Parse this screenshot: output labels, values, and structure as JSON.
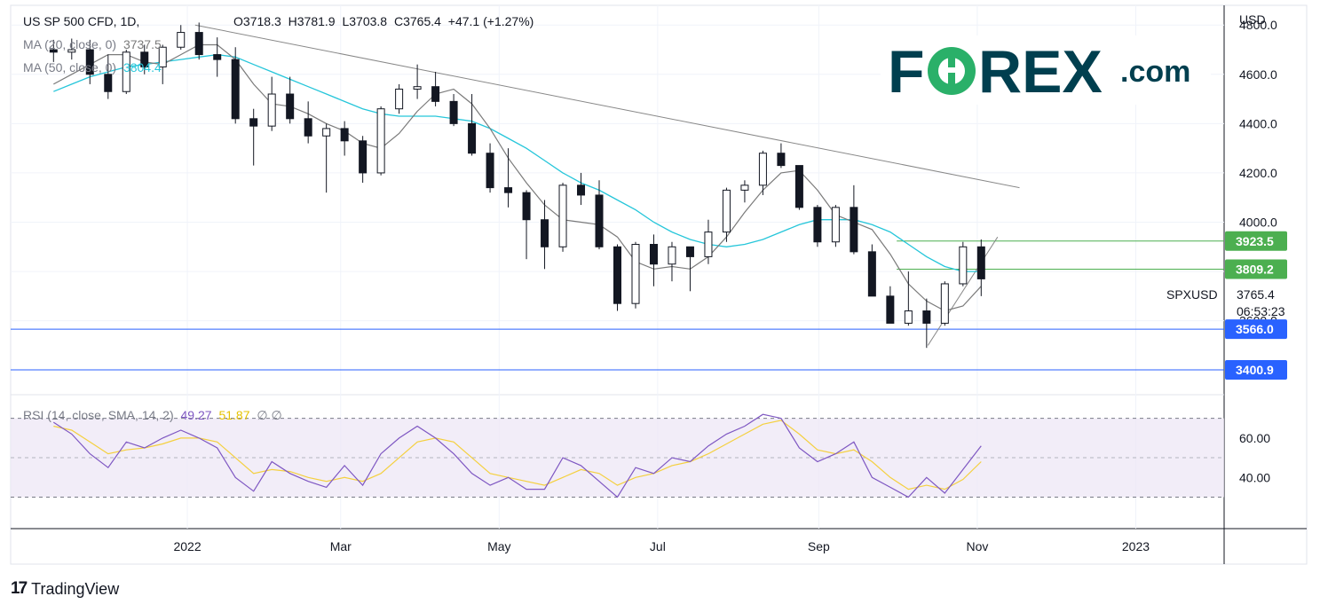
{
  "header": {
    "symbol": "US SP 500 CFD, 1D,",
    "open": "O3718.3",
    "high": "H3781.9",
    "low": "L3703.8",
    "close": "C3765.4",
    "change": "+47.1 (+1.27%)"
  },
  "indicators": {
    "ma20_label": "MA (20, close, 0)",
    "ma20_value": "3737.5",
    "ma50_label": "MA (50, close, 0)",
    "ma50_value": "3804.4",
    "rsi_label": "RSI (14, close, SMA, 14, 2)",
    "rsi_value": "49.27",
    "rsi_sma_value": "51.87",
    "rsi_extra": "∅ ∅"
  },
  "price_axis": {
    "currency": "USD",
    "ticks": [
      "4800.0",
      "4600.0",
      "4400.0",
      "4200.0",
      "4000.0",
      "3600.0"
    ],
    "tags": [
      {
        "label": "3923.5",
        "value": 3923.5,
        "color": "#4caf50"
      },
      {
        "label": "3809.2",
        "value": 3809.2,
        "color": "#4caf50"
      },
      {
        "label": "3566.0",
        "value": 3566.0,
        "color": "#2962ff"
      },
      {
        "label": "3400.9",
        "value": 3400.9,
        "color": "#2962ff"
      }
    ],
    "last_symbol": "SPXUSD",
    "last_price": "3765.4",
    "countdown": "06:53:23"
  },
  "rsi_axis": {
    "ticks": [
      "60.00",
      "40.00"
    ]
  },
  "time_axis": {
    "labels": [
      "2022",
      "Mar",
      "May",
      "Jul",
      "Sep",
      "Nov",
      "2023"
    ]
  },
  "logo": {
    "part1": "F",
    "part2": "REX",
    "suffix": ".com",
    "colors": {
      "dark": "#003f4f",
      "green": "#2ab069"
    }
  },
  "footer": {
    "brand": "TradingView"
  },
  "colors": {
    "up": "#131722",
    "down": "#131722",
    "ma20": "#7a7a7a",
    "ma50": "#26c6da",
    "rsi": "#7e57c2",
    "rsi_sma": "#f4d03f",
    "trendline": "#888888"
  },
  "chart_data": {
    "type": "candlestick",
    "title": "US SP 500 CFD, 1D",
    "y_unit": "USD",
    "ylim": [
      3300,
      4850
    ],
    "x_range": [
      "2021-11",
      "2023-01"
    ],
    "candles_weekly_ohlc": [
      {
        "week": "2021-11-08",
        "o": 4700,
        "h": 4740,
        "l": 4650,
        "c": 4690
      },
      {
        "week": "2021-11-15",
        "o": 4690,
        "h": 4745,
        "l": 4660,
        "c": 4700
      },
      {
        "week": "2021-11-22",
        "o": 4700,
        "h": 4740,
        "l": 4560,
        "c": 4600
      },
      {
        "week": "2021-11-29",
        "o": 4600,
        "h": 4680,
        "l": 4500,
        "c": 4530
      },
      {
        "week": "2021-12-06",
        "o": 4530,
        "h": 4700,
        "l": 4520,
        "c": 4690
      },
      {
        "week": "2021-12-13",
        "o": 4690,
        "h": 4720,
        "l": 4600,
        "c": 4630
      },
      {
        "week": "2021-12-20",
        "o": 4630,
        "h": 4720,
        "l": 4560,
        "c": 4710
      },
      {
        "week": "2021-12-27",
        "o": 4710,
        "h": 4800,
        "l": 4700,
        "c": 4770
      },
      {
        "week": "2022-01-03",
        "o": 4770,
        "h": 4810,
        "l": 4660,
        "c": 4680
      },
      {
        "week": "2022-01-10",
        "o": 4680,
        "h": 4750,
        "l": 4590,
        "c": 4660
      },
      {
        "week": "2022-01-17",
        "o": 4660,
        "h": 4710,
        "l": 4400,
        "c": 4420
      },
      {
        "week": "2022-01-24",
        "o": 4420,
        "h": 4460,
        "l": 4230,
        "c": 4390
      },
      {
        "week": "2022-01-31",
        "o": 4390,
        "h": 4590,
        "l": 4370,
        "c": 4520
      },
      {
        "week": "2022-02-07",
        "o": 4520,
        "h": 4590,
        "l": 4400,
        "c": 4420
      },
      {
        "week": "2022-02-14",
        "o": 4420,
        "h": 4490,
        "l": 4320,
        "c": 4350
      },
      {
        "week": "2022-02-21",
        "o": 4350,
        "h": 4400,
        "l": 4120,
        "c": 4380
      },
      {
        "week": "2022-02-28",
        "o": 4380,
        "h": 4410,
        "l": 4270,
        "c": 4330
      },
      {
        "week": "2022-03-07",
        "o": 4330,
        "h": 4350,
        "l": 4160,
        "c": 4200
      },
      {
        "week": "2022-03-14",
        "o": 4200,
        "h": 4470,
        "l": 4190,
        "c": 4460
      },
      {
        "week": "2022-03-21",
        "o": 4460,
        "h": 4560,
        "l": 4440,
        "c": 4540
      },
      {
        "week": "2022-03-28",
        "o": 4540,
        "h": 4640,
        "l": 4500,
        "c": 4550
      },
      {
        "week": "2022-04-04",
        "o": 4550,
        "h": 4610,
        "l": 4470,
        "c": 4490
      },
      {
        "week": "2022-04-11",
        "o": 4490,
        "h": 4520,
        "l": 4390,
        "c": 4400
      },
      {
        "week": "2022-04-18",
        "o": 4400,
        "h": 4520,
        "l": 4270,
        "c": 4280
      },
      {
        "week": "2022-04-25",
        "o": 4280,
        "h": 4320,
        "l": 4120,
        "c": 4140
      },
      {
        "week": "2022-05-02",
        "o": 4140,
        "h": 4300,
        "l": 4060,
        "c": 4120
      },
      {
        "week": "2022-05-09",
        "o": 4120,
        "h": 4130,
        "l": 3850,
        "c": 4010
      },
      {
        "week": "2022-05-16",
        "o": 4010,
        "h": 4090,
        "l": 3810,
        "c": 3900
      },
      {
        "week": "2022-05-23",
        "o": 3900,
        "h": 4160,
        "l": 3880,
        "c": 4150
      },
      {
        "week": "2022-05-30",
        "o": 4150,
        "h": 4200,
        "l": 4070,
        "c": 4110
      },
      {
        "week": "2022-06-06",
        "o": 4110,
        "h": 4170,
        "l": 3890,
        "c": 3900
      },
      {
        "week": "2022-06-13",
        "o": 3900,
        "h": 3910,
        "l": 3640,
        "c": 3670
      },
      {
        "week": "2022-06-20",
        "o": 3670,
        "h": 3920,
        "l": 3650,
        "c": 3910
      },
      {
        "week": "2022-06-27",
        "o": 3910,
        "h": 3950,
        "l": 3740,
        "c": 3830
      },
      {
        "week": "2022-07-04",
        "o": 3830,
        "h": 3920,
        "l": 3760,
        "c": 3900
      },
      {
        "week": "2022-07-11",
        "o": 3900,
        "h": 3900,
        "l": 3720,
        "c": 3860
      },
      {
        "week": "2022-07-18",
        "o": 3860,
        "h": 4010,
        "l": 3830,
        "c": 3960
      },
      {
        "week": "2022-07-25",
        "o": 3960,
        "h": 4140,
        "l": 3920,
        "c": 4130
      },
      {
        "week": "2022-08-01",
        "o": 4130,
        "h": 4170,
        "l": 4080,
        "c": 4150
      },
      {
        "week": "2022-08-08",
        "o": 4150,
        "h": 4290,
        "l": 4110,
        "c": 4280
      },
      {
        "week": "2022-08-15",
        "o": 4280,
        "h": 4320,
        "l": 4220,
        "c": 4230
      },
      {
        "week": "2022-08-22",
        "o": 4230,
        "h": 4210,
        "l": 4050,
        "c": 4060
      },
      {
        "week": "2022-08-29",
        "o": 4060,
        "h": 4070,
        "l": 3900,
        "c": 3920
      },
      {
        "week": "2022-09-05",
        "o": 3920,
        "h": 4070,
        "l": 3900,
        "c": 4060
      },
      {
        "week": "2022-09-12",
        "o": 4060,
        "h": 4150,
        "l": 3870,
        "c": 3880
      },
      {
        "week": "2022-09-19",
        "o": 3880,
        "h": 3910,
        "l": 3700,
        "c": 3700
      },
      {
        "week": "2022-09-26",
        "o": 3700,
        "h": 3740,
        "l": 3590,
        "c": 3590
      },
      {
        "week": "2022-10-03",
        "o": 3590,
        "h": 3800,
        "l": 3580,
        "c": 3640
      },
      {
        "week": "2022-10-10",
        "o": 3640,
        "h": 3690,
        "l": 3490,
        "c": 3590
      },
      {
        "week": "2022-10-17",
        "o": 3590,
        "h": 3760,
        "l": 3580,
        "c": 3750
      },
      {
        "week": "2022-10-24",
        "o": 3750,
        "h": 3920,
        "l": 3740,
        "c": 3900
      },
      {
        "week": "2022-10-31",
        "o": 3900,
        "h": 3930,
        "l": 3700,
        "c": 3770
      }
    ],
    "ma20_weekly": [
      4560,
      4600,
      4640,
      4680,
      4680,
      4650,
      4640,
      4680,
      4720,
      4720,
      4660,
      4560,
      4480,
      4470,
      4440,
      4400,
      4370,
      4320,
      4300,
      4360,
      4450,
      4520,
      4540,
      4480,
      4380,
      4260,
      4160,
      4070,
      4010,
      4000,
      3990,
      3940,
      3840,
      3810,
      3820,
      3810,
      3860,
      3940,
      4040,
      4130,
      4200,
      4210,
      4130,
      4030,
      4000,
      3970,
      3870,
      3750,
      3680,
      3640,
      3660,
      3740
    ],
    "ma50_weekly": [
      4530,
      4560,
      4590,
      4610,
      4630,
      4640,
      4650,
      4660,
      4670,
      4680,
      4670,
      4640,
      4610,
      4580,
      4550,
      4520,
      4490,
      4460,
      4440,
      4430,
      4430,
      4430,
      4420,
      4410,
      4380,
      4340,
      4300,
      4250,
      4200,
      4160,
      4130,
      4090,
      4050,
      4000,
      3960,
      3930,
      3910,
      3900,
      3910,
      3930,
      3960,
      3990,
      4010,
      4010,
      4010,
      3990,
      3960,
      3910,
      3860,
      3820,
      3800,
      3800
    ],
    "rsi_weekly": [
      68,
      62,
      52,
      45,
      58,
      55,
      60,
      64,
      60,
      55,
      40,
      33,
      48,
      42,
      38,
      35,
      46,
      36,
      52,
      60,
      66,
      60,
      52,
      42,
      36,
      40,
      34,
      34,
      50,
      46,
      38,
      30,
      45,
      42,
      50,
      48,
      56,
      62,
      66,
      72,
      70,
      55,
      48,
      52,
      58,
      40,
      35,
      30,
      40,
      32,
      44,
      56
    ],
    "rsi_sma_weekly": [
      66,
      64,
      58,
      52,
      54,
      55,
      57,
      60,
      60,
      58,
      50,
      42,
      44,
      43,
      40,
      38,
      40,
      38,
      42,
      50,
      58,
      60,
      58,
      50,
      42,
      40,
      38,
      36,
      40,
      44,
      42,
      36,
      40,
      42,
      46,
      48,
      52,
      57,
      62,
      67,
      69,
      62,
      54,
      52,
      54,
      48,
      40,
      34,
      36,
      34,
      39,
      48
    ],
    "rsi_ylim": [
      20,
      80
    ],
    "rsi_bands": [
      30,
      70
    ],
    "rsi_midline": 50,
    "horizontal_levels": [
      3923.5,
      3809.2,
      3566.0,
      3400.9
    ],
    "resistance_trendline": [
      {
        "date": "2022-01-04",
        "value": 4800
      },
      {
        "date": "2022-11-07",
        "value": 4150
      }
    ],
    "support_trendline": [
      {
        "date": "2022-10-13",
        "value": 3500
      },
      {
        "date": "2022-11-02",
        "value": 3920
      }
    ]
  }
}
